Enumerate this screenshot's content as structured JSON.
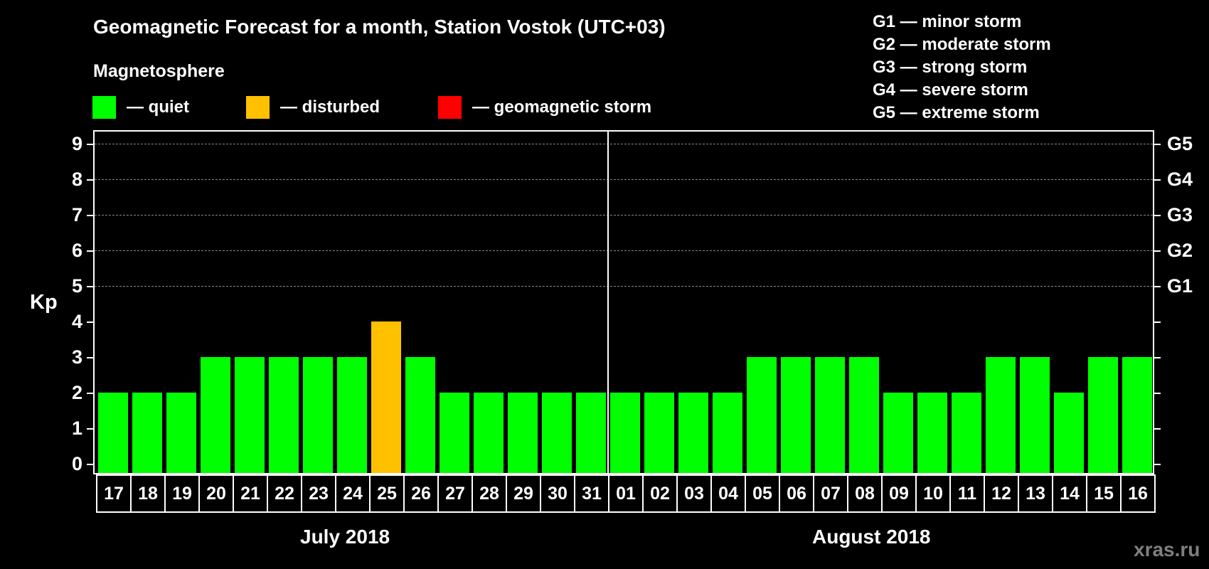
{
  "title": "Geomagnetic Forecast for a month, Station Vostok (UTC+03)",
  "section_label": "Magnetosphere",
  "legend": [
    {
      "key": "quiet",
      "label": "— quiet",
      "color": "#00FF00"
    },
    {
      "key": "disturbed",
      "label": "— disturbed",
      "color": "#FFC000"
    },
    {
      "key": "storm",
      "label": "— geomagnetic storm",
      "color": "#FF0000"
    }
  ],
  "g_legend": [
    "G1 — minor storm",
    "G2 — moderate storm",
    "G3 — strong storm",
    "G4 — severe storm",
    "G5 — extreme storm"
  ],
  "watermark": "xras.ru",
  "chart_data": {
    "type": "bar",
    "title": "Geomagnetic Forecast for a month, Station Vostok (UTC+03)",
    "xlabel": "",
    "ylabel": "Kp",
    "ylim": [
      0,
      9
    ],
    "yticks": [
      0,
      1,
      2,
      3,
      4,
      5,
      6,
      7,
      8,
      9
    ],
    "y2_ticks": [
      {
        "value": 5,
        "label": "G1"
      },
      {
        "value": 6,
        "label": "G2"
      },
      {
        "value": 7,
        "label": "G3"
      },
      {
        "value": 8,
        "label": "G4"
      },
      {
        "value": 9,
        "label": "G5"
      }
    ],
    "grid": {
      "horizontal_dashed_at": [
        5,
        6,
        7,
        8,
        9
      ]
    },
    "months": [
      {
        "label": "July 2018",
        "days": [
          "17",
          "18",
          "19",
          "20",
          "21",
          "22",
          "23",
          "24",
          "25",
          "26",
          "27",
          "28",
          "29",
          "30",
          "31"
        ]
      },
      {
        "label": "August 2018",
        "days": [
          "01",
          "02",
          "03",
          "04",
          "05",
          "06",
          "07",
          "08",
          "09",
          "10",
          "11",
          "12",
          "13",
          "14",
          "15",
          "16"
        ]
      }
    ],
    "categories": [
      "17",
      "18",
      "19",
      "20",
      "21",
      "22",
      "23",
      "24",
      "25",
      "26",
      "27",
      "28",
      "29",
      "30",
      "31",
      "01",
      "02",
      "03",
      "04",
      "05",
      "06",
      "07",
      "08",
      "09",
      "10",
      "11",
      "12",
      "13",
      "14",
      "15",
      "16"
    ],
    "values": [
      2,
      2,
      2,
      3,
      3,
      3,
      3,
      3,
      4,
      3,
      2,
      2,
      2,
      2,
      2,
      2,
      2,
      2,
      2,
      3,
      3,
      3,
      3,
      2,
      2,
      2,
      3,
      3,
      2,
      3,
      3
    ],
    "status": [
      "quiet",
      "quiet",
      "quiet",
      "quiet",
      "quiet",
      "quiet",
      "quiet",
      "quiet",
      "disturbed",
      "quiet",
      "quiet",
      "quiet",
      "quiet",
      "quiet",
      "quiet",
      "quiet",
      "quiet",
      "quiet",
      "quiet",
      "quiet",
      "quiet",
      "quiet",
      "quiet",
      "quiet",
      "quiet",
      "quiet",
      "quiet",
      "quiet",
      "quiet",
      "quiet",
      "quiet"
    ],
    "colors": {
      "quiet": "#00FF00",
      "disturbed": "#FFC000",
      "storm": "#FF0000"
    },
    "legend_position": "top"
  }
}
